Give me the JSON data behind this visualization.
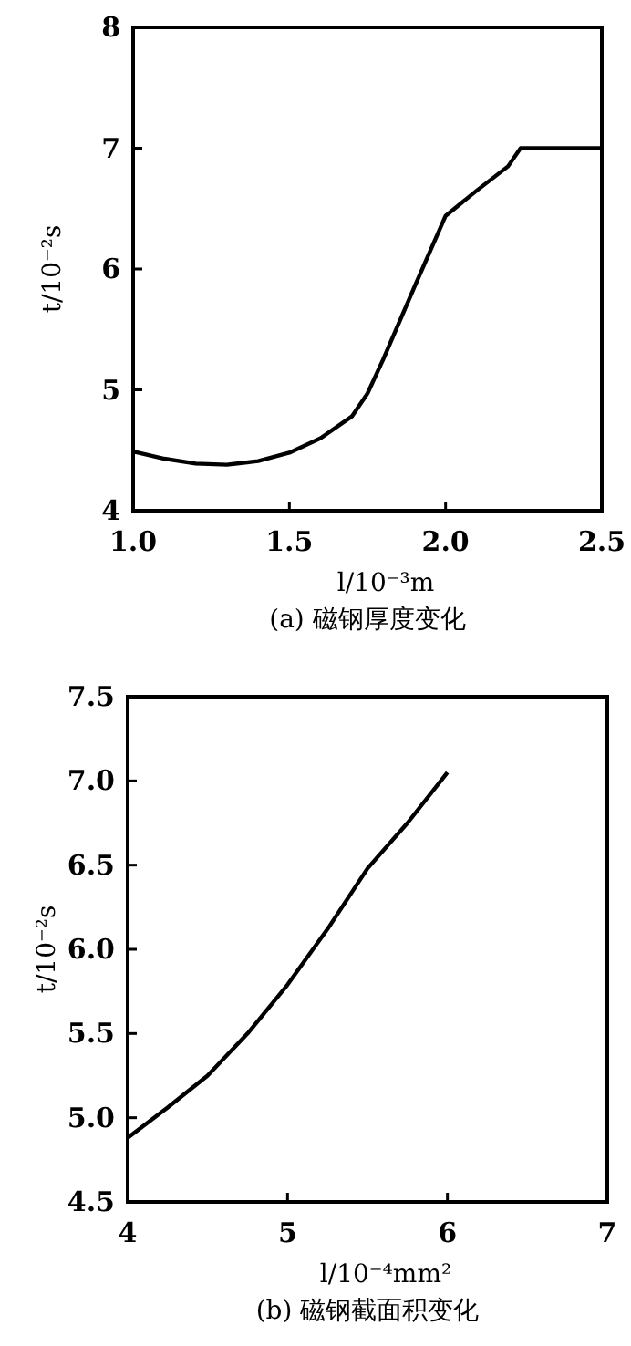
{
  "chart_data": [
    {
      "type": "line",
      "xlabel": "l/10⁻³m",
      "ylabel": "t/10⁻²s",
      "annotations": [
        "(a) 磁钢厚度变化"
      ],
      "xlim": [
        1.0,
        2.5
      ],
      "ylim": [
        4,
        8
      ],
      "xticks": [
        {
          "value": 1.0,
          "label": "1.0"
        },
        1.5,
        {
          "value": 2.0,
          "label": "2.0"
        },
        2.5
      ],
      "yticks": [
        4,
        5,
        6,
        7,
        8
      ],
      "grid": false,
      "series": [
        {
          "color": "#000000",
          "x": [
            1.0,
            1.1,
            1.2,
            1.3,
            1.4,
            1.5,
            1.6,
            1.7,
            1.75,
            1.8,
            1.9,
            2.0,
            2.1,
            2.2,
            2.24,
            2.5
          ],
          "values": [
            4.49,
            4.43,
            4.39,
            4.38,
            4.41,
            4.48,
            4.6,
            4.78,
            4.97,
            5.25,
            5.85,
            6.44,
            6.65,
            6.85,
            7.0,
            7.0
          ]
        }
      ]
    },
    {
      "type": "line",
      "xlabel": "l/10⁻⁴mm²",
      "ylabel": "t/10⁻²s",
      "annotations": [
        "(b) 磁钢截面积变化"
      ],
      "xlim": [
        4,
        7
      ],
      "ylim": [
        4.5,
        7.5
      ],
      "xticks": [
        4,
        5,
        6,
        7
      ],
      "yticks": [
        4.5,
        {
          "value": 5,
          "label": "5.0"
        },
        5.5,
        {
          "value": 6,
          "label": "6.0"
        },
        6.5,
        {
          "value": 7,
          "label": "7.0"
        },
        7.5
      ],
      "grid": false,
      "series": [
        {
          "color": "#000000",
          "x": [
            4,
            4.25,
            4.5,
            4.75,
            5,
            5.25,
            5.5,
            5.75,
            6
          ],
          "values": [
            4.88,
            5.06,
            5.25,
            5.5,
            5.79,
            6.12,
            6.48,
            6.75,
            7.05
          ]
        }
      ]
    }
  ]
}
